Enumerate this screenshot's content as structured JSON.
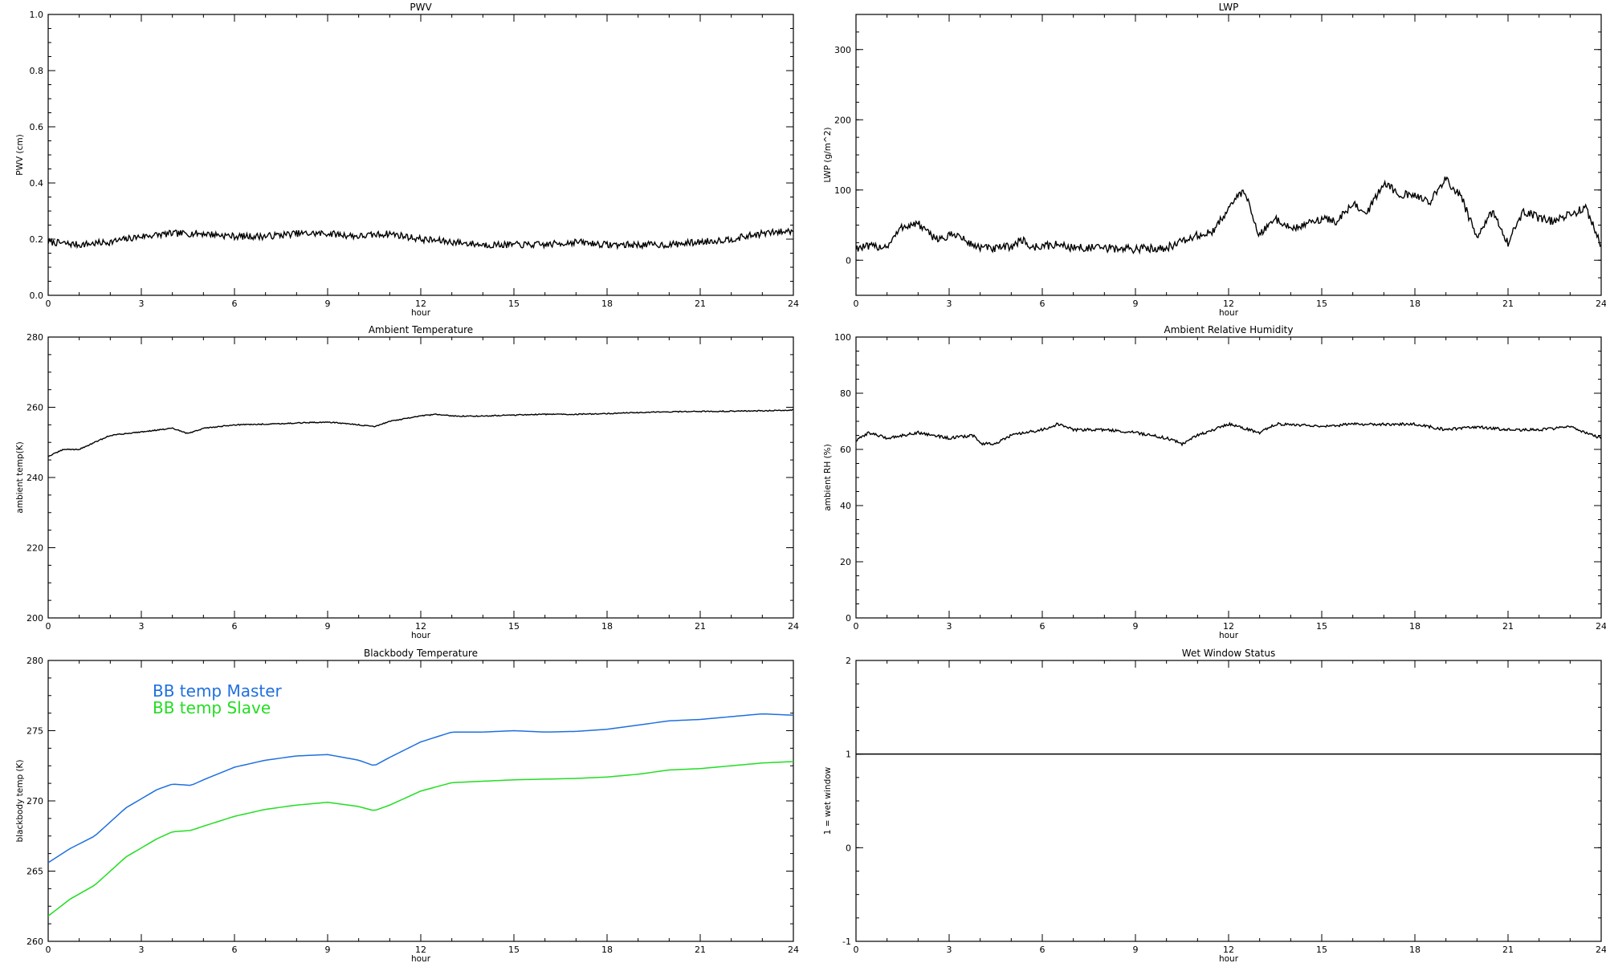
{
  "chart_data": [
    {
      "type": "line",
      "title": "PWV",
      "xlabel": "hour",
      "ylabel": "PWV (cm)",
      "xlim": [
        0,
        24
      ],
      "ylim": [
        0.0,
        1.0
      ],
      "xticks": [
        0,
        3,
        6,
        9,
        12,
        15,
        18,
        21,
        24
      ],
      "xtick_labels": [
        "0",
        "3",
        "6",
        "9",
        "12",
        "15",
        "18",
        "21",
        "24"
      ],
      "yticks": [
        0.0,
        0.2,
        0.4,
        0.6,
        0.8,
        1.0
      ],
      "ytick_labels": [
        "0.0",
        "0.2",
        "0.4",
        "0.6",
        "0.8",
        "1.0"
      ],
      "noise": 0.012,
      "series": [
        {
          "color": "#000000",
          "x": [
            0,
            1,
            2,
            3,
            4,
            5,
            6,
            7,
            8,
            9,
            10,
            11,
            12,
            13,
            14,
            15,
            16,
            17,
            18,
            19,
            20,
            21,
            22,
            23,
            24
          ],
          "y": [
            0.19,
            0.18,
            0.19,
            0.21,
            0.22,
            0.22,
            0.21,
            0.21,
            0.22,
            0.22,
            0.21,
            0.22,
            0.2,
            0.19,
            0.18,
            0.18,
            0.18,
            0.19,
            0.18,
            0.18,
            0.18,
            0.19,
            0.2,
            0.22,
            0.23
          ]
        }
      ]
    },
    {
      "type": "line",
      "title": "LWP",
      "xlabel": "hour",
      "ylabel": "LWP (g/m^2)",
      "xlim": [
        0,
        24
      ],
      "ylim": [
        -50,
        350
      ],
      "xticks": [
        0,
        3,
        6,
        9,
        12,
        15,
        18,
        21,
        24
      ],
      "xtick_labels": [
        "0",
        "3",
        "6",
        "9",
        "12",
        "15",
        "18",
        "21",
        "24"
      ],
      "yticks": [
        0,
        100,
        200,
        300
      ],
      "ytick_labels": [
        "0",
        "100",
        "200",
        "300"
      ],
      "noise": 6,
      "series": [
        {
          "color": "#000000",
          "x": [
            0,
            1,
            1.5,
            2,
            2.4,
            2.8,
            3.2,
            3.6,
            4,
            4.5,
            5,
            5.4,
            5.6,
            6,
            6.5,
            7,
            8,
            9,
            10,
            11,
            11.5,
            12,
            12.5,
            13,
            13.5,
            14,
            14.5,
            15,
            15.5,
            16,
            16.5,
            17,
            17.5,
            18,
            18.5,
            19,
            19.5,
            20,
            20.5,
            21,
            21.5,
            22,
            22.5,
            23,
            23.5,
            24
          ],
          "y": [
            18,
            20,
            48,
            52,
            35,
            30,
            38,
            25,
            18,
            16,
            20,
            30,
            18,
            20,
            22,
            18,
            17,
            16,
            18,
            35,
            40,
            75,
            100,
            35,
            60,
            45,
            50,
            60,
            55,
            80,
            70,
            110,
            95,
            90,
            85,
            115,
            90,
            30,
            70,
            25,
            70,
            60,
            55,
            65,
            75,
            20
          ]
        }
      ]
    },
    {
      "type": "line",
      "title": "Ambient Temperature",
      "xlabel": "hour",
      "ylabel": "ambient temp(K)",
      "xlim": [
        0,
        24
      ],
      "ylim": [
        200,
        280
      ],
      "xticks": [
        0,
        3,
        6,
        9,
        12,
        15,
        18,
        21,
        24
      ],
      "xtick_labels": [
        "0",
        "3",
        "6",
        "9",
        "12",
        "15",
        "18",
        "21",
        "24"
      ],
      "yticks": [
        200,
        220,
        240,
        260,
        280
      ],
      "ytick_labels": [
        "200",
        "220",
        "240",
        "260",
        "280"
      ],
      "noise": 0.15,
      "series": [
        {
          "color": "#000000",
          "x": [
            0,
            0.5,
            1,
            1.5,
            2,
            3,
            4,
            4.5,
            5,
            6,
            7,
            8,
            9,
            10,
            10.5,
            11,
            12,
            12.5,
            13,
            14,
            15,
            16,
            17,
            18,
            19,
            20,
            21,
            22,
            23,
            24
          ],
          "y": [
            246,
            248,
            248,
            250,
            252,
            253,
            254,
            252.5,
            254,
            255,
            255.2,
            255.5,
            255.8,
            255,
            254.5,
            256,
            257.5,
            258,
            257.5,
            257.5,
            257.8,
            258,
            258,
            258.2,
            258.5,
            258.7,
            258.8,
            258.9,
            259,
            259.2
          ]
        }
      ]
    },
    {
      "type": "line",
      "title": "Ambient Relative Humidity",
      "xlabel": "hour",
      "ylabel": "ambient RH (%)",
      "xlim": [
        0,
        24
      ],
      "ylim": [
        0,
        100
      ],
      "xticks": [
        0,
        3,
        6,
        9,
        12,
        15,
        18,
        21,
        24
      ],
      "xtick_labels": [
        "0",
        "3",
        "6",
        "9",
        "12",
        "15",
        "18",
        "21",
        "24"
      ],
      "yticks": [
        0,
        20,
        40,
        60,
        80,
        100
      ],
      "ytick_labels": [
        "0",
        "20",
        "40",
        "60",
        "80",
        "100"
      ],
      "noise": 0.5,
      "series": [
        {
          "color": "#000000",
          "x": [
            0,
            0.4,
            1,
            2,
            3,
            3.8,
            4,
            4.5,
            5,
            6,
            6.5,
            7,
            8,
            9,
            10,
            10.5,
            11,
            12,
            13,
            13.5,
            14,
            15,
            16,
            17,
            18,
            19,
            20,
            21,
            22,
            23,
            24
          ],
          "y": [
            63,
            66,
            64,
            66,
            64,
            65,
            62,
            62,
            65,
            67,
            69,
            67,
            67,
            66,
            64,
            62,
            65,
            69,
            66,
            69,
            69,
            68,
            69,
            69,
            69,
            67,
            68,
            67,
            67,
            68,
            64
          ]
        }
      ]
    },
    {
      "type": "line",
      "title": "Blackbody Temperature",
      "xlabel": "hour",
      "ylabel": "blackbody temp (K)",
      "xlim": [
        0,
        24
      ],
      "ylim": [
        260,
        280
      ],
      "xticks": [
        0,
        3,
        6,
        9,
        12,
        15,
        18,
        21,
        24
      ],
      "xtick_labels": [
        "0",
        "3",
        "6",
        "9",
        "12",
        "15",
        "18",
        "21",
        "24"
      ],
      "yticks": [
        260,
        265,
        270,
        275,
        280
      ],
      "ytick_labels": [
        "260",
        "265",
        "270",
        "275",
        "280"
      ],
      "noise": 0,
      "legend": [
        "BB temp Master",
        "BB temp Slave"
      ],
      "series": [
        {
          "name": "BB temp Master",
          "color": "#1f6fe0",
          "x": [
            0,
            0.7,
            1.5,
            2.5,
            3.5,
            4,
            4.6,
            5,
            6,
            7,
            8,
            9,
            10,
            10.5,
            11,
            12,
            13,
            14,
            15,
            16,
            17,
            18,
            19,
            20,
            21,
            22,
            23,
            24
          ],
          "y": [
            265.6,
            266.6,
            267.5,
            269.5,
            270.8,
            271.2,
            271.1,
            271.5,
            272.4,
            272.9,
            273.2,
            273.3,
            272.9,
            272.5,
            273.1,
            274.2,
            274.9,
            274.9,
            275,
            274.9,
            274.95,
            275.1,
            275.4,
            275.7,
            275.8,
            276,
            276.2,
            276.1
          ]
        },
        {
          "name": "BB temp Slave",
          "color": "#22dd22",
          "x": [
            0,
            0.7,
            1.5,
            2.5,
            3.5,
            4,
            4.6,
            5,
            6,
            7,
            8,
            9,
            10,
            10.5,
            11,
            12,
            13,
            14,
            15,
            16,
            17,
            18,
            19,
            20,
            21,
            22,
            23,
            24
          ],
          "y": [
            261.8,
            263,
            264,
            266,
            267.3,
            267.8,
            267.9,
            268.2,
            268.9,
            269.4,
            269.7,
            269.9,
            269.6,
            269.3,
            269.7,
            270.7,
            271.3,
            271.4,
            271.5,
            271.55,
            271.6,
            271.7,
            271.9,
            272.2,
            272.3,
            272.5,
            272.7,
            272.8
          ]
        }
      ]
    },
    {
      "type": "line",
      "title": "Wet Window Status",
      "xlabel": "hour",
      "ylabel": "1 = wet window",
      "xlim": [
        0,
        24
      ],
      "ylim": [
        -1,
        2
      ],
      "xticks": [
        0,
        3,
        6,
        9,
        12,
        15,
        18,
        21,
        24
      ],
      "xtick_labels": [
        "0",
        "3",
        "6",
        "9",
        "12",
        "15",
        "18",
        "21",
        "24"
      ],
      "yticks": [
        -1,
        0,
        1,
        2
      ],
      "ytick_labels": [
        "-1",
        "0",
        "1",
        "2"
      ],
      "noise": 0,
      "series": [
        {
          "color": "#000000",
          "x": [
            0,
            24
          ],
          "y": [
            1,
            1
          ]
        }
      ]
    }
  ]
}
